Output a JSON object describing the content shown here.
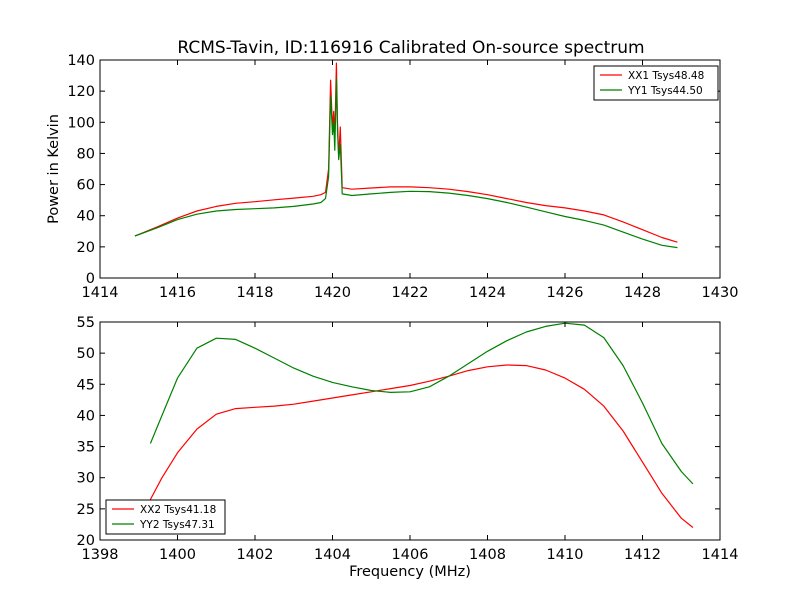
{
  "figure": {
    "title": "RCMS-Tavin, ID:116916 Calibrated On-source spectrum"
  },
  "colors": {
    "red": "#ff0000",
    "green": "#008000"
  },
  "chart_data": [
    {
      "type": "line",
      "title": "RCMS-Tavin, ID:116916 Calibrated On-source spectrum",
      "xlabel": "",
      "ylabel": "Power in Kelvin",
      "xlim": [
        1414,
        1430
      ],
      "ylim": [
        0,
        140
      ],
      "xticks": [
        1414,
        1416,
        1418,
        1420,
        1422,
        1424,
        1426,
        1428,
        1430
      ],
      "yticks": [
        0,
        20,
        40,
        60,
        80,
        100,
        120,
        140
      ],
      "legend_position": "top-right",
      "series": [
        {
          "name": "XX1 Tsys48.48",
          "color": "#ff0000",
          "x": [
            1414.9,
            1415.5,
            1416.0,
            1416.5,
            1417.0,
            1417.5,
            1418.0,
            1418.5,
            1419.0,
            1419.5,
            1419.7,
            1419.82,
            1419.9,
            1419.95,
            1420.0,
            1420.03,
            1420.06,
            1420.1,
            1420.13,
            1420.16,
            1420.2,
            1420.25,
            1420.5,
            1421.0,
            1421.5,
            1422.0,
            1422.5,
            1423.0,
            1423.5,
            1424.0,
            1424.5,
            1425.0,
            1425.5,
            1426.0,
            1426.5,
            1427.0,
            1427.5,
            1428.0,
            1428.5,
            1428.9
          ],
          "y": [
            27,
            33,
            38.5,
            43,
            46,
            48,
            49,
            50.2,
            51.3,
            52.5,
            53.5,
            55,
            70,
            127,
            96,
            107,
            90,
            138,
            100,
            78,
            97,
            58,
            57,
            57.8,
            58.5,
            58.5,
            58,
            57,
            55.5,
            53.5,
            51,
            48.5,
            46.5,
            45,
            43,
            40.5,
            36,
            31,
            26,
            23
          ]
        },
        {
          "name": "YY1 Tsys44.50",
          "color": "#008000",
          "x": [
            1414.9,
            1415.5,
            1416.0,
            1416.5,
            1417.0,
            1417.5,
            1418.0,
            1418.5,
            1419.0,
            1419.5,
            1419.7,
            1419.82,
            1419.9,
            1419.95,
            1420.0,
            1420.03,
            1420.06,
            1420.1,
            1420.13,
            1420.16,
            1420.2,
            1420.25,
            1420.5,
            1421.0,
            1421.5,
            1422.0,
            1422.5,
            1423.0,
            1423.5,
            1424.0,
            1424.5,
            1425.0,
            1425.5,
            1426.0,
            1426.5,
            1427.0,
            1427.5,
            1428.0,
            1428.5,
            1428.9
          ],
          "y": [
            27,
            32.5,
            37.5,
            41,
            43,
            44,
            44.5,
            45,
            46,
            47.5,
            48.5,
            51,
            65,
            117,
            92,
            100,
            82,
            128,
            95,
            76,
            86,
            54,
            53,
            54,
            55,
            55.7,
            55.5,
            54.5,
            53,
            51,
            48.5,
            45.5,
            42.5,
            39.5,
            37,
            34,
            29.5,
            25,
            21,
            19.5
          ]
        }
      ]
    },
    {
      "type": "line",
      "title": "",
      "xlabel": "Frequency (MHz)",
      "ylabel": "",
      "xlim": [
        1398,
        1414
      ],
      "ylim": [
        20,
        55
      ],
      "xticks": [
        1398,
        1400,
        1402,
        1404,
        1406,
        1408,
        1410,
        1412,
        1414
      ],
      "yticks": [
        20,
        25,
        30,
        35,
        40,
        45,
        50,
        55
      ],
      "legend_position": "bottom-left",
      "series": [
        {
          "name": "XX2 Tsys41.18",
          "color": "#ff0000",
          "x": [
            1399.3,
            1399.6,
            1400.0,
            1400.5,
            1401.0,
            1401.5,
            1402.0,
            1402.5,
            1403.0,
            1403.5,
            1404.0,
            1404.5,
            1405.0,
            1405.5,
            1406.0,
            1406.5,
            1407.0,
            1407.5,
            1408.0,
            1408.5,
            1409.0,
            1409.5,
            1410.0,
            1410.5,
            1411.0,
            1411.5,
            1412.0,
            1412.5,
            1413.0,
            1413.3
          ],
          "y": [
            26.5,
            30,
            34,
            37.8,
            40.2,
            41.1,
            41.3,
            41.5,
            41.8,
            42.3,
            42.8,
            43.3,
            43.8,
            44.3,
            44.8,
            45.5,
            46.3,
            47.2,
            47.8,
            48.1,
            48,
            47.3,
            46,
            44.2,
            41.5,
            37.5,
            32.5,
            27.5,
            23.5,
            22
          ]
        },
        {
          "name": "YY2 Tsys47.31",
          "color": "#008000",
          "x": [
            1399.3,
            1399.6,
            1400.0,
            1400.5,
            1401.0,
            1401.5,
            1402.0,
            1402.5,
            1403.0,
            1403.5,
            1404.0,
            1404.5,
            1405.0,
            1405.5,
            1406.0,
            1406.5,
            1407.0,
            1407.5,
            1408.0,
            1408.5,
            1409.0,
            1409.5,
            1410.0,
            1410.5,
            1411.0,
            1411.5,
            1412.0,
            1412.5,
            1413.0,
            1413.3
          ],
          "y": [
            35.5,
            40,
            46,
            50.8,
            52.4,
            52.2,
            50.8,
            49.2,
            47.6,
            46.3,
            45.3,
            44.6,
            44,
            43.7,
            43.8,
            44.6,
            46.3,
            48.3,
            50.3,
            52,
            53.4,
            54.3,
            54.8,
            54.5,
            52.5,
            48,
            42,
            35.5,
            31,
            29
          ]
        }
      ]
    }
  ]
}
